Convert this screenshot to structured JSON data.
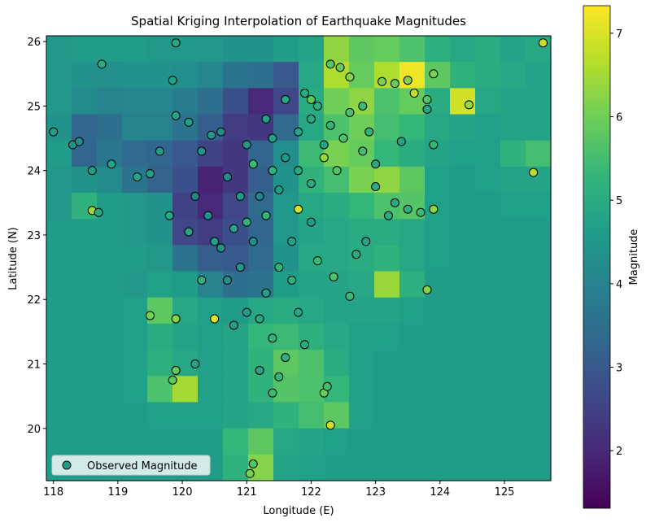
{
  "chart_data": {
    "type": "scatter",
    "title": "Spatial Kriging Interpolation of Earthquake Magnitudes",
    "x_label": "Longitude (E)",
    "y_label": "Latitude (N)",
    "xlim": [
      117.89,
      125.72
    ],
    "ylim": [
      19.19,
      26.09
    ],
    "xticks": [
      118,
      119,
      120,
      121,
      122,
      123,
      124,
      125
    ],
    "yticks": [
      20,
      21,
      22,
      23,
      24,
      25,
      26
    ],
    "colorbar": {
      "label": "Magnitude",
      "clim": [
        1.31,
        7.33
      ],
      "ticks": [
        2,
        3,
        4,
        5,
        6,
        7
      ],
      "colormap": "viridis"
    },
    "legend": {
      "position": "lower left"
    },
    "background": {
      "type": "heatmap",
      "z": [
        [
          4.5,
          4.6,
          4.6,
          4.6,
          4.5,
          4.5,
          4.5,
          4.4,
          4.4,
          4.6,
          4.8,
          6.3,
          5.8,
          5.9,
          5.6,
          5.1,
          4.9,
          5.0,
          4.8,
          4.9
        ],
        [
          4.5,
          4.4,
          4.3,
          4.4,
          4.4,
          4.3,
          4.1,
          3.6,
          3.5,
          3.0,
          4.9,
          6.6,
          5.9,
          6.6,
          7.2,
          5.8,
          5.2,
          5.0,
          4.9,
          4.8
        ],
        [
          4.5,
          4.2,
          4.0,
          4.1,
          4.1,
          3.8,
          3.5,
          2.8,
          2.0,
          2.6,
          5.0,
          6.0,
          6.3,
          5.6,
          5.9,
          5.0,
          6.9,
          4.9,
          4.8,
          4.8
        ],
        [
          4.4,
          3.3,
          3.5,
          4.0,
          4.0,
          3.6,
          3.1,
          2.4,
          2.3,
          3.4,
          4.9,
          5.6,
          6.0,
          5.5,
          5.3,
          4.9,
          4.8,
          4.7,
          4.8,
          4.8
        ],
        [
          4.6,
          3.3,
          3.7,
          3.4,
          3.3,
          3.0,
          2.5,
          2.3,
          3.3,
          4.3,
          5.4,
          6.1,
          5.9,
          5.3,
          5.0,
          4.8,
          4.7,
          4.7,
          5.2,
          5.5
        ],
        [
          4.5,
          4.4,
          4.2,
          3.6,
          3.2,
          2.8,
          1.9,
          2.3,
          3.1,
          4.4,
          5.2,
          5.5,
          6.1,
          6.3,
          5.8,
          4.7,
          4.6,
          4.7,
          4.8,
          4.8
        ],
        [
          4.5,
          5.2,
          4.6,
          4.5,
          4.4,
          2.5,
          2.0,
          2.6,
          3.4,
          4.5,
          4.9,
          5.0,
          5.3,
          5.6,
          5.7,
          4.7,
          4.6,
          4.6,
          4.7,
          4.7
        ],
        [
          4.6,
          4.6,
          4.6,
          4.5,
          4.4,
          2.6,
          2.4,
          2.8,
          3.3,
          4.5,
          4.8,
          4.9,
          5.0,
          5.0,
          4.9,
          4.7,
          4.6,
          4.6,
          4.6,
          4.6
        ],
        [
          4.6,
          4.6,
          4.6,
          4.6,
          4.5,
          3.6,
          3.1,
          3.0,
          3.4,
          4.4,
          4.9,
          4.9,
          5.0,
          5.2,
          4.9,
          4.7,
          4.6,
          4.6,
          4.6,
          4.6
        ],
        [
          4.6,
          4.6,
          4.6,
          4.5,
          4.7,
          4.6,
          4.0,
          3.5,
          3.6,
          4.6,
          4.8,
          4.8,
          4.9,
          6.4,
          5.1,
          4.6,
          4.6,
          4.6,
          4.6,
          4.6
        ],
        [
          4.6,
          4.6,
          4.6,
          4.7,
          5.8,
          4.9,
          4.7,
          4.6,
          4.9,
          5.0,
          4.9,
          4.8,
          4.8,
          4.8,
          4.7,
          4.6,
          4.6,
          4.6,
          4.6,
          4.6
        ],
        [
          4.6,
          4.6,
          4.6,
          4.7,
          5.0,
          4.8,
          4.7,
          4.8,
          5.3,
          5.4,
          5.1,
          4.9,
          4.7,
          4.7,
          4.6,
          4.6,
          4.6,
          4.6,
          4.6,
          4.6
        ],
        [
          4.6,
          4.6,
          4.6,
          4.7,
          5.1,
          4.9,
          4.7,
          4.8,
          5.2,
          5.8,
          5.6,
          5.0,
          4.7,
          4.6,
          4.6,
          4.6,
          4.6,
          4.6,
          4.6,
          4.6
        ],
        [
          4.6,
          4.6,
          4.6,
          4.7,
          5.6,
          6.5,
          4.7,
          4.8,
          5.2,
          5.7,
          5.6,
          5.3,
          4.7,
          4.6,
          4.6,
          4.6,
          4.6,
          4.6,
          4.6,
          4.6
        ],
        [
          4.6,
          4.6,
          4.6,
          4.6,
          4.7,
          4.7,
          4.7,
          4.8,
          4.9,
          5.2,
          5.5,
          5.8,
          4.7,
          4.6,
          4.6,
          4.6,
          4.6,
          4.6,
          4.6,
          4.6
        ],
        [
          4.6,
          4.6,
          4.6,
          4.6,
          4.6,
          4.6,
          4.6,
          5.3,
          5.8,
          4.9,
          4.8,
          4.7,
          4.6,
          4.6,
          4.6,
          4.6,
          4.6,
          4.6,
          4.6,
          4.6
        ],
        [
          4.6,
          4.6,
          4.6,
          4.6,
          4.6,
          4.6,
          4.6,
          5.2,
          6.2,
          4.8,
          4.7,
          4.6,
          4.6,
          4.6,
          4.6,
          4.6,
          4.6,
          4.6,
          4.6,
          4.6
        ]
      ]
    },
    "series": [
      {
        "name": "Observed Magnitude",
        "x": [
          118.0,
          118.3,
          118.4,
          118.75,
          118.6,
          118.9,
          118.6,
          118.7,
          119.3,
          119.5,
          119.65,
          119.9,
          119.85,
          119.9,
          120.1,
          119.8,
          119.5,
          119.9,
          119.85,
          119.9,
          120.2,
          120.5,
          120.3,
          120.6,
          120.8,
          120.9,
          121.1,
          121.3,
          121.5,
          121.6,
          121.8,
          122.0,
          121.4,
          121.1,
          120.9,
          120.7,
          121.0,
          121.3,
          121.6,
          121.9,
          122.1,
          122.3,
          122.5,
          122.8,
          123.0,
          122.2,
          122.4,
          122.0,
          121.8,
          121.7,
          121.5,
          121.3,
          121.2,
          121.4,
          121.6,
          121.9,
          121.2,
          121.5,
          121.4,
          122.2,
          122.3,
          122.25,
          121.1,
          121.05,
          122.35,
          122.6,
          122.7,
          122.85,
          123.2,
          123.5,
          123.7,
          123.9,
          123.8,
          123.3,
          123.0,
          122.9,
          123.4,
          123.9,
          123.6,
          123.5,
          123.3,
          123.1,
          122.3,
          122.6,
          122.45,
          123.9,
          123.8,
          124.45,
          123.8,
          125.6,
          125.45,
          122.0,
          122.2,
          120.3,
          120.6,
          120.45,
          120.2,
          120.1,
          120.4,
          120.5,
          120.7,
          121.0,
          120.8,
          121.8,
          121.7,
          122.0,
          122.1,
          121.4,
          121.8,
          121.2,
          121.0,
          122.6,
          122.8
        ],
        "y": [
          24.6,
          24.4,
          24.45,
          25.65,
          24.0,
          24.1,
          23.38,
          23.35,
          23.9,
          23.95,
          24.3,
          25.98,
          25.4,
          24.85,
          24.75,
          23.3,
          21.75,
          21.7,
          20.75,
          20.9,
          21.0,
          21.7,
          22.3,
          22.8,
          23.1,
          22.5,
          22.9,
          23.3,
          23.7,
          24.2,
          24.6,
          24.8,
          24.5,
          24.1,
          23.6,
          23.9,
          24.4,
          24.8,
          25.1,
          25.2,
          25.0,
          24.7,
          24.5,
          24.3,
          24.1,
          24.2,
          24.0,
          23.8,
          23.4,
          22.9,
          22.5,
          22.1,
          21.7,
          21.4,
          21.1,
          21.3,
          20.9,
          20.8,
          20.55,
          20.55,
          20.05,
          20.65,
          19.45,
          19.3,
          22.35,
          22.05,
          22.7,
          22.9,
          23.3,
          23.4,
          23.35,
          23.4,
          22.15,
          23.5,
          23.75,
          24.6,
          24.45,
          24.4,
          25.2,
          25.4,
          25.35,
          25.38,
          25.65,
          25.45,
          25.6,
          25.5,
          25.1,
          25.02,
          24.95,
          25.98,
          23.97,
          25.1,
          24.4,
          24.3,
          24.6,
          24.55,
          23.6,
          23.05,
          23.3,
          22.9,
          22.3,
          21.8,
          21.6,
          21.8,
          22.3,
          23.2,
          22.6,
          24.0,
          24.0,
          23.6,
          23.2,
          24.9,
          25.0
        ],
        "values": [
          4.6,
          4.4,
          4.3,
          5.0,
          4.7,
          4.8,
          6.4,
          5.0,
          4.9,
          4.7,
          4.6,
          4.9,
          4.7,
          4.8,
          4.7,
          4.9,
          6.1,
          6.2,
          5.8,
          5.9,
          4.8,
          7.1,
          5.2,
          4.4,
          4.8,
          4.5,
          4.3,
          5.3,
          4.6,
          4.5,
          4.8,
          5.0,
          4.7,
          5.4,
          4.6,
          4.2,
          4.5,
          4.7,
          4.9,
          5.0,
          5.1,
          5.3,
          5.6,
          5.5,
          4.9,
          6.4,
          5.7,
          5.0,
          7.0,
          4.8,
          5.2,
          4.7,
          4.9,
          5.2,
          5.1,
          5.0,
          4.8,
          5.3,
          5.4,
          5.9,
          6.9,
          5.5,
          5.7,
          6.1,
          5.6,
          5.4,
          5.0,
          4.8,
          5.0,
          5.1,
          5.4,
          6.3,
          6.2,
          4.9,
          5.0,
          5.2,
          4.8,
          5.3,
          6.8,
          6.2,
          5.9,
          6.1,
          5.7,
          6.2,
          5.9,
          6.1,
          5.7,
          6.4,
          4.9,
          6.8,
          6.7,
          5.8,
          4.8,
          4.4,
          4.2,
          4.5,
          4.1,
          4.9,
          4.3,
          4.7,
          4.4,
          4.6,
          4.7,
          4.9,
          5.1,
          4.6,
          5.4,
          5.2,
          4.9,
          4.0,
          5.2,
          5.6,
          5.4
        ]
      }
    ]
  }
}
